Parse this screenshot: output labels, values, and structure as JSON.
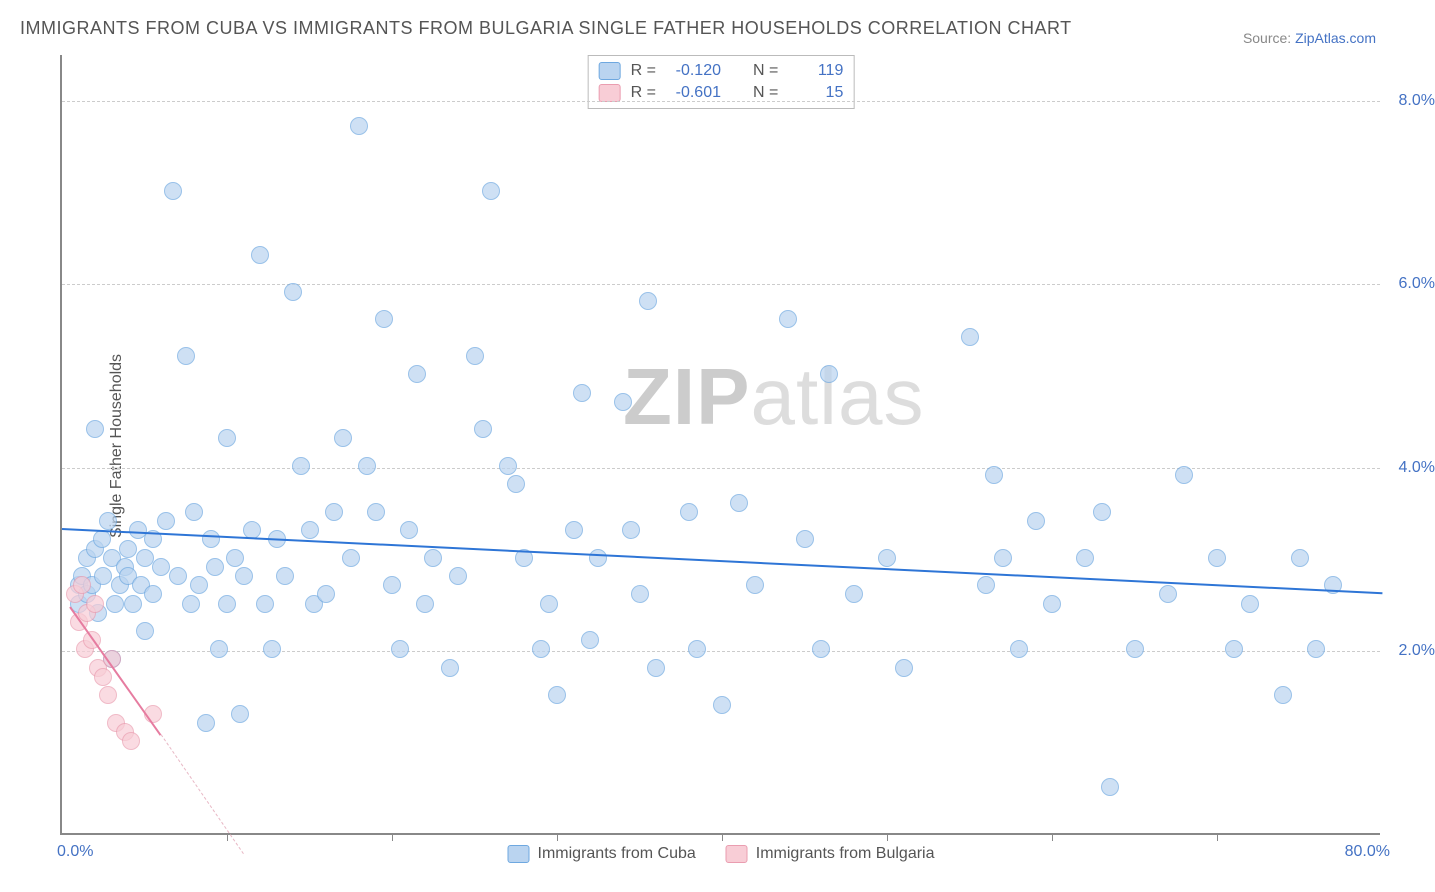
{
  "title": "IMMIGRANTS FROM CUBA VS IMMIGRANTS FROM BULGARIA SINGLE FATHER HOUSEHOLDS CORRELATION CHART",
  "source_label": "Source: ",
  "source_name": "ZipAtlas.com",
  "ylabel": "Single Father Households",
  "watermark_1": "ZIP",
  "watermark_2": "atlas",
  "chart": {
    "type": "scatter",
    "xlim": [
      0,
      80
    ],
    "ylim": [
      0,
      8.5
    ],
    "x_tick_labels": {
      "min": "0.0%",
      "max": "80.0%"
    },
    "y_tick_labels": [
      "2.0%",
      "4.0%",
      "6.0%",
      "8.0%"
    ],
    "y_tick_values": [
      2.0,
      4.0,
      6.0,
      8.0
    ],
    "x_minor_ticks": [
      10,
      20,
      30,
      40,
      50,
      60,
      70
    ],
    "background_color": "#ffffff",
    "grid_color": "#cccccc",
    "axis_color": "#888888",
    "tick_label_color": "#4472c4",
    "marker_radius": 9,
    "series": [
      {
        "name": "Immigrants from Cuba",
        "fill": "#bad4f0",
        "stroke": "#6ea8e0",
        "R": "-0.120",
        "N": "119",
        "trend": {
          "x1": 0,
          "y1": 3.35,
          "x2": 80,
          "y2": 2.65,
          "color": "#2e75d6",
          "width": 2
        },
        "points": [
          [
            1,
            2.7
          ],
          [
            1,
            2.5
          ],
          [
            1.2,
            2.8
          ],
          [
            1.5,
            2.6
          ],
          [
            1.5,
            3.0
          ],
          [
            1.8,
            2.7
          ],
          [
            2,
            3.1
          ],
          [
            2,
            4.4
          ],
          [
            2.2,
            2.4
          ],
          [
            2.4,
            3.2
          ],
          [
            2.5,
            2.8
          ],
          [
            2.8,
            3.4
          ],
          [
            3,
            1.9
          ],
          [
            3,
            3.0
          ],
          [
            3.2,
            2.5
          ],
          [
            3.5,
            2.7
          ],
          [
            3.8,
            2.9
          ],
          [
            4,
            2.8
          ],
          [
            4,
            3.1
          ],
          [
            4.3,
            2.5
          ],
          [
            4.6,
            3.3
          ],
          [
            4.8,
            2.7
          ],
          [
            5,
            2.2
          ],
          [
            5,
            3.0
          ],
          [
            5.5,
            3.2
          ],
          [
            5.5,
            2.6
          ],
          [
            6,
            2.9
          ],
          [
            6.3,
            3.4
          ],
          [
            6.7,
            7.0
          ],
          [
            7,
            2.8
          ],
          [
            7.5,
            5.2
          ],
          [
            7.8,
            2.5
          ],
          [
            8,
            3.5
          ],
          [
            8.3,
            2.7
          ],
          [
            8.7,
            1.2
          ],
          [
            9,
            3.2
          ],
          [
            9.3,
            2.9
          ],
          [
            9.5,
            2.0
          ],
          [
            10,
            4.3
          ],
          [
            10,
            2.5
          ],
          [
            10.5,
            3.0
          ],
          [
            10.8,
            1.3
          ],
          [
            11,
            2.8
          ],
          [
            11.5,
            3.3
          ],
          [
            12,
            6.3
          ],
          [
            12.3,
            2.5
          ],
          [
            12.7,
            2.0
          ],
          [
            13,
            3.2
          ],
          [
            13.5,
            2.8
          ],
          [
            14,
            5.9
          ],
          [
            14.5,
            4.0
          ],
          [
            15,
            3.3
          ],
          [
            15.3,
            2.5
          ],
          [
            16,
            2.6
          ],
          [
            16.5,
            3.5
          ],
          [
            17,
            4.3
          ],
          [
            17.5,
            3.0
          ],
          [
            18,
            7.7
          ],
          [
            18.5,
            4.0
          ],
          [
            19,
            3.5
          ],
          [
            19.5,
            5.6
          ],
          [
            20,
            2.7
          ],
          [
            20.5,
            2.0
          ],
          [
            21,
            3.3
          ],
          [
            21.5,
            5.0
          ],
          [
            22,
            2.5
          ],
          [
            22.5,
            3.0
          ],
          [
            23.5,
            1.8
          ],
          [
            24,
            2.8
          ],
          [
            25,
            5.2
          ],
          [
            25.5,
            4.4
          ],
          [
            26,
            7.0
          ],
          [
            27,
            4.0
          ],
          [
            27.5,
            3.8
          ],
          [
            28,
            3.0
          ],
          [
            29,
            2.0
          ],
          [
            29.5,
            2.5
          ],
          [
            30,
            1.5
          ],
          [
            31,
            3.3
          ],
          [
            31.5,
            4.8
          ],
          [
            32,
            2.1
          ],
          [
            32.5,
            3.0
          ],
          [
            34,
            4.7
          ],
          [
            34.5,
            3.3
          ],
          [
            35,
            2.6
          ],
          [
            35.5,
            5.8
          ],
          [
            36,
            1.8
          ],
          [
            38,
            3.5
          ],
          [
            38.5,
            2.0
          ],
          [
            40,
            1.4
          ],
          [
            41,
            3.6
          ],
          [
            42,
            2.7
          ],
          [
            44,
            5.6
          ],
          [
            45,
            3.2
          ],
          [
            46,
            2.0
          ],
          [
            46.5,
            5.0
          ],
          [
            48,
            2.6
          ],
          [
            50,
            3.0
          ],
          [
            51,
            1.8
          ],
          [
            55,
            5.4
          ],
          [
            56,
            2.7
          ],
          [
            56.5,
            3.9
          ],
          [
            57,
            3.0
          ],
          [
            58,
            2.0
          ],
          [
            59,
            3.4
          ],
          [
            60,
            2.5
          ],
          [
            62,
            3.0
          ],
          [
            63,
            3.5
          ],
          [
            63.5,
            0.5
          ],
          [
            65,
            2.0
          ],
          [
            67,
            2.6
          ],
          [
            68,
            3.9
          ],
          [
            70,
            3.0
          ],
          [
            71,
            2.0
          ],
          [
            72,
            2.5
          ],
          [
            74,
            1.5
          ],
          [
            75,
            3.0
          ],
          [
            76,
            2.0
          ],
          [
            77,
            2.7
          ]
        ]
      },
      {
        "name": "Immigrants from Bulgaria",
        "fill": "#f8cdd6",
        "stroke": "#ea9db0",
        "R": "-0.601",
        "N": "15",
        "trend": {
          "x1": 0.5,
          "y1": 2.5,
          "x2": 6,
          "y2": 1.1,
          "color": "#e67ca0",
          "width": 2
        },
        "trend_dash": {
          "x1": 6,
          "y1": 1.1,
          "x2": 11,
          "y2": -0.2
        },
        "points": [
          [
            0.8,
            2.6
          ],
          [
            1.0,
            2.3
          ],
          [
            1.2,
            2.7
          ],
          [
            1.4,
            2.0
          ],
          [
            1.5,
            2.4
          ],
          [
            1.8,
            2.1
          ],
          [
            2.0,
            2.5
          ],
          [
            2.2,
            1.8
          ],
          [
            2.5,
            1.7
          ],
          [
            2.8,
            1.5
          ],
          [
            3.0,
            1.9
          ],
          [
            3.3,
            1.2
          ],
          [
            3.8,
            1.1
          ],
          [
            4.2,
            1.0
          ],
          [
            5.5,
            1.3
          ]
        ]
      }
    ]
  },
  "stats_box": {
    "R_label": "R =",
    "N_label": "N ="
  },
  "bottom_legend": {
    "cuba": "Immigrants from Cuba",
    "bulgaria": "Immigrants from Bulgaria"
  }
}
